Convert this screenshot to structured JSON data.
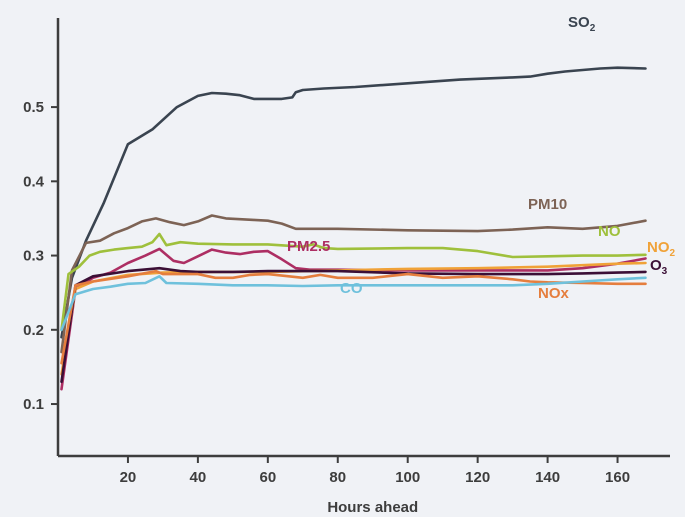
{
  "chart_data": {
    "type": "line",
    "xlabel": "Hours ahead",
    "ylabel": "",
    "title": "",
    "xlim": [
      0,
      175
    ],
    "ylim": [
      0.03,
      0.62
    ],
    "x_ticks": [
      20,
      40,
      60,
      80,
      100,
      120,
      140,
      160
    ],
    "y_ticks": [
      0.1,
      0.2,
      0.3,
      0.4,
      0.5
    ],
    "x_tick_labels": [
      "20",
      "40",
      "60",
      "80",
      "100",
      "120",
      "140",
      "160"
    ],
    "y_tick_labels": [
      "0.1",
      "0.2",
      "0.3",
      "0.4",
      "0.5"
    ],
    "grid": false,
    "series": [
      {
        "name": "SO2",
        "label_main": "SO",
        "label_sub": "2",
        "color": "#3a4450",
        "x": [
          1,
          4,
          8,
          13,
          20,
          27,
          34,
          40,
          44,
          48,
          52,
          56,
          60,
          64,
          67,
          68,
          70,
          76,
          85,
          100,
          115,
          130,
          135,
          140,
          145,
          150,
          155,
          160,
          168
        ],
        "y": [
          0.19,
          0.27,
          0.32,
          0.37,
          0.45,
          0.47,
          0.5,
          0.515,
          0.519,
          0.518,
          0.516,
          0.511,
          0.511,
          0.511,
          0.513,
          0.52,
          0.523,
          0.525,
          0.527,
          0.532,
          0.537,
          0.54,
          0.541,
          0.545,
          0.548,
          0.55,
          0.552,
          0.553,
          0.552
        ]
      },
      {
        "name": "PM10",
        "label_main": "PM10",
        "label_sub": "",
        "color": "#7d6355",
        "x": [
          1,
          4,
          8,
          12,
          16,
          20,
          24,
          28,
          32,
          36,
          40,
          44,
          48,
          52,
          56,
          60,
          64,
          68,
          72,
          80,
          100,
          120,
          130,
          140,
          150,
          160,
          168
        ],
        "y": [
          0.17,
          0.28,
          0.317,
          0.32,
          0.33,
          0.337,
          0.346,
          0.35,
          0.345,
          0.341,
          0.346,
          0.354,
          0.35,
          0.349,
          0.348,
          0.347,
          0.343,
          0.336,
          0.336,
          0.336,
          0.334,
          0.333,
          0.335,
          0.338,
          0.336,
          0.34,
          0.347
        ]
      },
      {
        "name": "NO",
        "label_main": "NO",
        "label_sub": "",
        "color": "#9fc03c",
        "x": [
          1,
          3,
          6,
          9,
          12,
          16,
          20,
          24,
          27,
          29,
          31,
          35,
          40,
          50,
          60,
          70,
          73,
          76,
          80,
          100,
          110,
          120,
          130,
          140,
          150,
          160,
          168
        ],
        "y": [
          0.2,
          0.275,
          0.285,
          0.3,
          0.305,
          0.308,
          0.31,
          0.312,
          0.318,
          0.329,
          0.314,
          0.318,
          0.316,
          0.315,
          0.315,
          0.312,
          0.315,
          0.31,
          0.309,
          0.31,
          0.31,
          0.306,
          0.298,
          0.299,
          0.3,
          0.3,
          0.301
        ]
      },
      {
        "name": "PM2.5",
        "label_main": "PM2.5",
        "label_sub": "",
        "color": "#ad2e63",
        "x": [
          1,
          5,
          10,
          15,
          20,
          25,
          29,
          33,
          36,
          40,
          44,
          48,
          52,
          56,
          60,
          64,
          68,
          72,
          80,
          100,
          120,
          140,
          150,
          160,
          168
        ],
        "y": [
          0.12,
          0.255,
          0.27,
          0.277,
          0.29,
          0.3,
          0.309,
          0.293,
          0.29,
          0.299,
          0.308,
          0.304,
          0.302,
          0.305,
          0.306,
          0.295,
          0.283,
          0.281,
          0.281,
          0.28,
          0.28,
          0.28,
          0.283,
          0.289,
          0.296
        ]
      },
      {
        "name": "NO2",
        "label_main": "NO",
        "label_sub": "2",
        "color": "#f0a238",
        "x": [
          1,
          5,
          10,
          20,
          30,
          40,
          50,
          60,
          80,
          100,
          120,
          140,
          150,
          160,
          168
        ],
        "y": [
          0.14,
          0.255,
          0.265,
          0.274,
          0.277,
          0.278,
          0.278,
          0.278,
          0.28,
          0.282,
          0.283,
          0.285,
          0.287,
          0.289,
          0.29
        ]
      },
      {
        "name": "O3",
        "label_main": "O",
        "label_sub": "3",
        "color": "#3b0f36",
        "x": [
          1,
          5,
          10,
          20,
          29,
          35,
          40,
          50,
          60,
          70,
          80,
          100,
          120,
          140,
          150,
          160,
          168
        ],
        "y": [
          0.13,
          0.26,
          0.272,
          0.279,
          0.283,
          0.279,
          0.278,
          0.278,
          0.279,
          0.279,
          0.279,
          0.276,
          0.275,
          0.275,
          0.276,
          0.277,
          0.278
        ]
      },
      {
        "name": "NOx",
        "label_main": "NOx",
        "label_sub": "",
        "color": "#e57e3e",
        "x": [
          1,
          5,
          10,
          20,
          28,
          30,
          40,
          45,
          50,
          55,
          60,
          70,
          75,
          80,
          90,
          100,
          110,
          120,
          130,
          135,
          140,
          150,
          160,
          168
        ],
        "y": [
          0.155,
          0.26,
          0.265,
          0.272,
          0.279,
          0.275,
          0.275,
          0.27,
          0.27,
          0.274,
          0.275,
          0.27,
          0.274,
          0.27,
          0.27,
          0.275,
          0.27,
          0.272,
          0.268,
          0.265,
          0.264,
          0.263,
          0.262,
          0.262
        ]
      },
      {
        "name": "CO",
        "label_main": "CO",
        "label_sub": "",
        "color": "#6fc1dc",
        "x": [
          1,
          5,
          10,
          15,
          20,
          25,
          29,
          31,
          40,
          50,
          60,
          70,
          80,
          100,
          120,
          130,
          140,
          150,
          160,
          168
        ],
        "y": [
          0.2,
          0.248,
          0.255,
          0.258,
          0.262,
          0.263,
          0.272,
          0.263,
          0.262,
          0.26,
          0.26,
          0.259,
          0.26,
          0.26,
          0.26,
          0.26,
          0.262,
          0.265,
          0.268,
          0.27
        ]
      }
    ]
  }
}
